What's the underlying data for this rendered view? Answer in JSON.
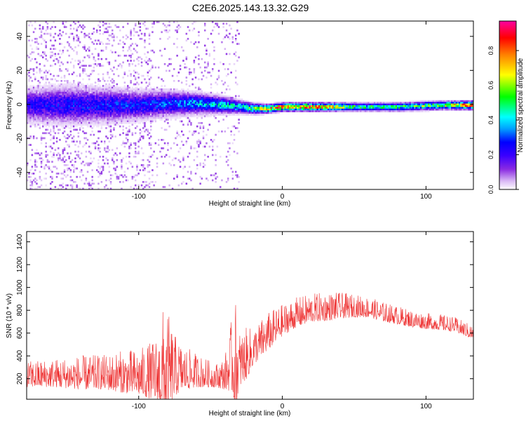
{
  "page_title": "C2E6.2025.143.13.32.G29",
  "chart_data": [
    {
      "type": "heatmap",
      "title": "C2E6.2025.143.13.32.G29",
      "xlabel": "Height of straight line (km)",
      "ylabel": "Frequency (Hz)",
      "xlim": [
        -178,
        133
      ],
      "ylim": [
        -50,
        49
      ],
      "xticks": [
        "-100",
        "0",
        "100"
      ],
      "yticks": [
        "-40",
        "-20",
        "0",
        "20",
        "40"
      ],
      "colorbar": {
        "label": "Normalized spectral amplitude",
        "ticks": [
          "0.0",
          "0.2",
          "0.4",
          "0.6",
          "0.8"
        ],
        "range": [
          0,
          0.97
        ],
        "colors": [
          "#ffffff",
          "#d9b8f5",
          "#8a2be2",
          "#3b00ff",
          "#0000ff",
          "#00a0ff",
          "#00ffff",
          "#00ff00",
          "#ffff00",
          "#ff8000",
          "#ff0000",
          "#ff00a0"
        ]
      },
      "ridge": {
        "x": [
          -178,
          -150,
          -120,
          -100,
          -80,
          -60,
          -40,
          -30,
          -20,
          -10,
          0,
          20,
          50,
          80,
          110,
          133
        ],
        "center_hz": [
          0,
          0,
          0,
          0,
          1,
          1,
          0,
          -1,
          -2,
          -2,
          -1,
          -1,
          -1,
          -1,
          0,
          0
        ],
        "halfwidth_hz": [
          8,
          9,
          8,
          7,
          6,
          5,
          4,
          3,
          2.5,
          2,
          2,
          2,
          2,
          2,
          2,
          2
        ],
        "peak_amplitude": [
          0.25,
          0.28,
          0.3,
          0.3,
          0.35,
          0.42,
          0.45,
          0.5,
          0.6,
          0.8,
          0.9,
          0.95,
          0.55,
          0.55,
          0.65,
          0.95
        ]
      }
    },
    {
      "type": "line",
      "xlabel": "Height of straight line (km)",
      "ylabel": "SNR (10 * v/v)",
      "xlim": [
        -178,
        133
      ],
      "ylim": [
        20,
        1490
      ],
      "xticks": [
        "-100",
        "0",
        "100"
      ],
      "yticks": [
        "200",
        "400",
        "600",
        "800",
        "1000",
        "1200",
        "1400"
      ],
      "color": "#ee3333",
      "envelope": {
        "x": [
          -178,
          -160,
          -140,
          -125,
          -110,
          -100,
          -90,
          -85,
          -82,
          -80,
          -75,
          -70,
          -60,
          -50,
          -45,
          -40,
          -35,
          -33,
          -30,
          -25,
          -20,
          -10,
          0,
          10,
          20,
          30,
          40,
          50,
          60,
          70,
          80,
          90,
          100,
          110,
          120,
          133
        ],
        "base": [
          230,
          240,
          240,
          245,
          245,
          240,
          250,
          270,
          320,
          300,
          290,
          280,
          260,
          230,
          220,
          240,
          380,
          380,
          350,
          400,
          470,
          600,
          700,
          770,
          810,
          820,
          830,
          830,
          820,
          780,
          750,
          720,
          700,
          690,
          670,
          600
        ],
        "spread": [
          230,
          250,
          300,
          300,
          380,
          400,
          520,
          650,
          1100,
          900,
          550,
          400,
          300,
          230,
          220,
          300,
          650,
          1000,
          500,
          450,
          330,
          330,
          280,
          260,
          250,
          250,
          230,
          200,
          180,
          170,
          160,
          150,
          140,
          140,
          130,
          120
        ]
      }
    }
  ]
}
